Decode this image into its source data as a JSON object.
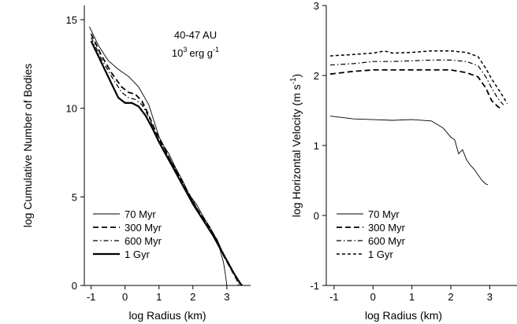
{
  "chart_data": [
    {
      "type": "line",
      "xlabel": "log Radius (km)",
      "ylabel": "log Cumulative Number of Bodies",
      "xlim": [
        -1.2,
        3.7
      ],
      "ylim": [
        0,
        15.8
      ],
      "xticks": [
        "-1",
        "0",
        "1",
        "2",
        "3"
      ],
      "yticks": [
        "0",
        "5",
        "10",
        "15"
      ],
      "annotation_line1": "40-47 AU",
      "annotation_line2_base": "10",
      "annotation_line2_exp": "3",
      "annotation_line2_unit": "erg g",
      "annotation_line2_unit_exp": "-1",
      "legend_position": "bottom-left",
      "series": [
        {
          "name": "70 Myr",
          "style": "solid-thin",
          "x": [
            -1.05,
            -0.8,
            -0.5,
            -0.2,
            0.1,
            0.4,
            0.7,
            0.9,
            1.0,
            1.1,
            1.3,
            1.5,
            1.7,
            1.9,
            2.1,
            2.3,
            2.5,
            2.7,
            2.8,
            2.9,
            2.95,
            3.0
          ],
          "y": [
            14.6,
            13.6,
            12.7,
            12.2,
            11.8,
            11.2,
            10.2,
            9.0,
            8.4,
            8.0,
            7.4,
            6.6,
            5.9,
            5.1,
            4.6,
            3.9,
            3.3,
            2.6,
            2.0,
            1.3,
            0.7,
            0.0
          ]
        },
        {
          "name": "300 Myr",
          "style": "dashed",
          "x": [
            -1.0,
            -0.7,
            -0.4,
            -0.1,
            0.1,
            0.3,
            0.5,
            0.7,
            0.9,
            1.1,
            1.3,
            1.5,
            1.7,
            1.9,
            2.1,
            2.3,
            2.5,
            2.7,
            2.9,
            3.1,
            3.3,
            3.35
          ],
          "y": [
            14.2,
            13.0,
            12.0,
            11.2,
            10.9,
            10.8,
            10.4,
            9.6,
            8.7,
            8.0,
            7.2,
            6.5,
            5.8,
            5.1,
            4.4,
            3.8,
            3.2,
            2.6,
            1.7,
            1.0,
            0.3,
            0.0
          ]
        },
        {
          "name": "600 Myr",
          "style": "dash-dot",
          "x": [
            -1.0,
            -0.7,
            -0.4,
            -0.1,
            0.1,
            0.3,
            0.5,
            0.7,
            0.9,
            1.1,
            1.3,
            1.5,
            1.7,
            1.9,
            2.1,
            2.3,
            2.5,
            2.7,
            2.9,
            3.1,
            3.3,
            3.4
          ],
          "y": [
            14.0,
            12.8,
            11.8,
            10.9,
            10.6,
            10.5,
            10.2,
            9.5,
            8.6,
            7.9,
            7.2,
            6.5,
            5.8,
            5.1,
            4.4,
            3.8,
            3.2,
            2.6,
            1.8,
            1.1,
            0.4,
            0.0
          ]
        },
        {
          "name": "1 Gyr",
          "style": "solid-thick",
          "x": [
            -1.0,
            -0.7,
            -0.4,
            -0.2,
            0.0,
            0.2,
            0.4,
            0.6,
            0.8,
            1.0,
            1.2,
            1.4,
            1.6,
            1.8,
            2.0,
            2.2,
            2.4,
            2.6,
            2.8,
            3.0,
            3.2,
            3.4,
            3.45
          ],
          "y": [
            13.8,
            12.6,
            11.4,
            10.6,
            10.3,
            10.3,
            10.1,
            9.6,
            8.9,
            8.1,
            7.4,
            6.7,
            6.0,
            5.3,
            4.6,
            4.0,
            3.4,
            2.8,
            2.1,
            1.4,
            0.7,
            0.1,
            0.0
          ]
        }
      ]
    },
    {
      "type": "line",
      "xlabel": "log Radius (km)",
      "ylabel_main": "log Horizontal Velocity (m s",
      "ylabel_sup": "-1",
      "ylabel_close": ")",
      "xlim": [
        -1.2,
        3.7
      ],
      "ylim": [
        -1,
        3
      ],
      "xticks": [
        "-1",
        "0",
        "1",
        "2",
        "3"
      ],
      "yticks": [
        "-1",
        "0",
        "1",
        "2",
        "3"
      ],
      "legend_position": "bottom-left",
      "series": [
        {
          "name": "70 Myr",
          "style": "solid-thin",
          "x": [
            -1.1,
            -0.5,
            0.0,
            0.5,
            1.0,
            1.5,
            1.8,
            2.0,
            2.1,
            2.2,
            2.3,
            2.4,
            2.5,
            2.6,
            2.7,
            2.8,
            2.9,
            2.95
          ],
          "y": [
            1.42,
            1.38,
            1.37,
            1.36,
            1.37,
            1.35,
            1.25,
            1.12,
            1.08,
            0.88,
            0.94,
            0.8,
            0.72,
            0.66,
            0.58,
            0.5,
            0.45,
            0.44
          ]
        },
        {
          "name": "300 Myr",
          "style": "dashed",
          "x": [
            -1.1,
            -0.5,
            0.0,
            0.5,
            1.0,
            1.5,
            2.0,
            2.4,
            2.7,
            2.9,
            3.05,
            3.2,
            3.3
          ],
          "y": [
            2.02,
            2.06,
            2.08,
            2.08,
            2.08,
            2.08,
            2.08,
            2.04,
            1.98,
            1.82,
            1.64,
            1.56,
            1.52
          ]
        },
        {
          "name": "600 Myr",
          "style": "dash-dot",
          "x": [
            -1.1,
            -0.5,
            0.0,
            0.5,
            1.0,
            1.5,
            2.0,
            2.4,
            2.7,
            2.9,
            3.05,
            3.2,
            3.35
          ],
          "y": [
            2.15,
            2.17,
            2.2,
            2.2,
            2.21,
            2.22,
            2.22,
            2.2,
            2.14,
            1.98,
            1.82,
            1.68,
            1.58
          ]
        },
        {
          "name": "1 Gyr",
          "style": "dotted-dash",
          "x": [
            -1.1,
            -0.5,
            0.0,
            0.3,
            0.5,
            1.0,
            1.5,
            2.0,
            2.4,
            2.7,
            2.9,
            3.05,
            3.25,
            3.45
          ],
          "y": [
            2.28,
            2.3,
            2.32,
            2.35,
            2.32,
            2.33,
            2.35,
            2.35,
            2.33,
            2.27,
            2.1,
            1.95,
            1.78,
            1.6
          ]
        }
      ]
    }
  ]
}
